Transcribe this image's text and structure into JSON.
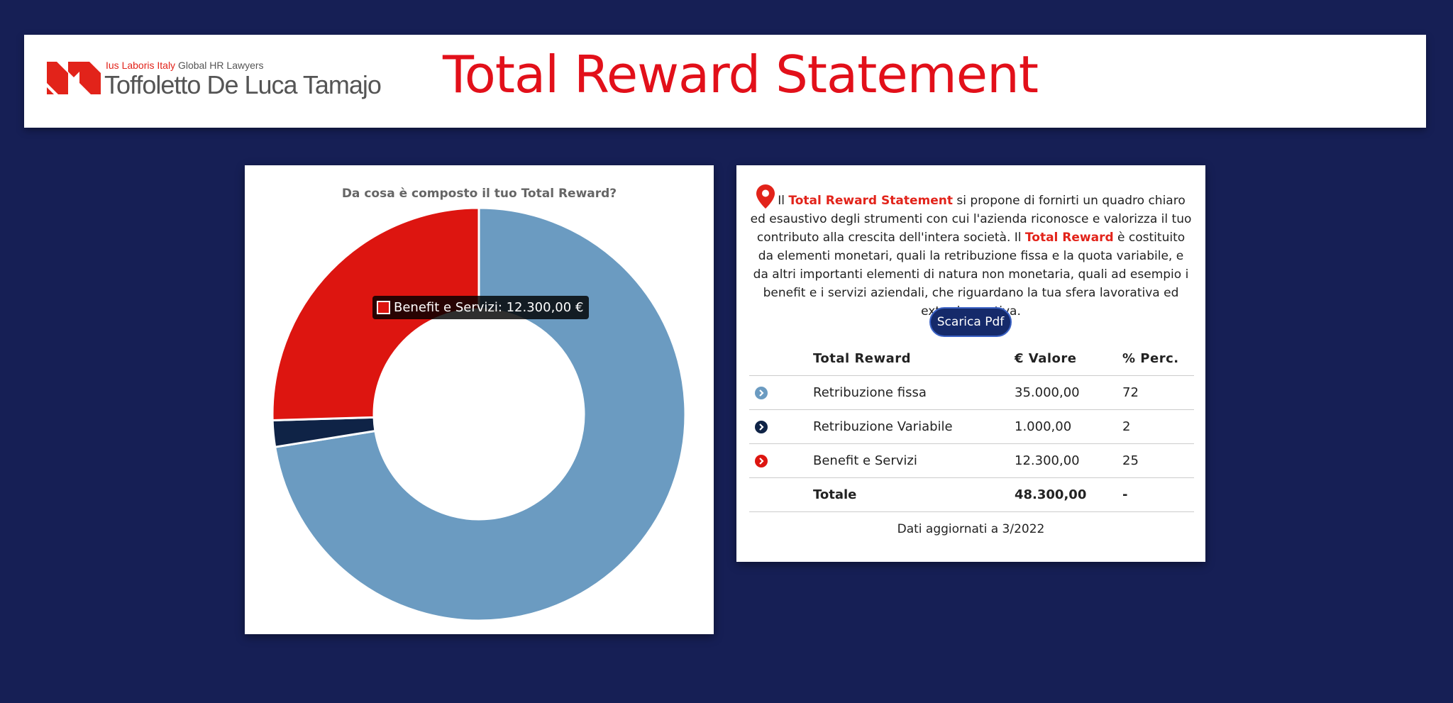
{
  "header": {
    "logo_tag_red": "Ius Laboris Italy",
    "logo_tag_rest": "Global HR Lawyers",
    "logo_name": "Toffoletto De Luca Tamajo",
    "title": "Total Reward Statement"
  },
  "chart_data": {
    "type": "donut",
    "title": "Da cosa è composto il tuo Total Reward?",
    "slices": [
      {
        "name": "Retribuzione fissa",
        "value": 35000,
        "color": "#6b9bc1"
      },
      {
        "name": "Retribuzione Variabile",
        "value": 1000,
        "color": "#0f2346"
      },
      {
        "name": "Benefit e Servizi",
        "value": 12300,
        "color": "#dd1510"
      }
    ],
    "tooltip": "Benefit e Servizi: 12.300,00 €"
  },
  "intro": {
    "p1": "Il ",
    "hl1": "Total Reward Statement",
    "p2": " si propone di fornirti un quadro chiaro ed esaustivo degli strumenti con cui l'azienda riconosce e valorizza il tuo contributo alla crescita dell'intera società. Il ",
    "hl2": "Total Reward",
    "p3": " è costituito da elementi monetari, quali la retribuzione fissa e la quota variabile, e da altri importanti elementi di natura non monetaria, quali ad esempio i benefit e i servizi aziendali, che riguardano la tua sfera lavorativa ed extra-lavorativa."
  },
  "button": {
    "label": "Scarica Pdf"
  },
  "table": {
    "headers": [
      "Total Reward",
      "€ Valore",
      "% Perc."
    ],
    "rows": [
      {
        "label": "Retribuzione fissa",
        "value": "35.000,00",
        "perc": "72",
        "color": "#6b9bc1"
      },
      {
        "label": "Retribuzione Variabile",
        "value": "1.000,00",
        "perc": "2",
        "color": "#0f2346"
      },
      {
        "label": "Benefit e Servizi",
        "value": "12.300,00",
        "perc": "25",
        "color": "#dd1510"
      }
    ],
    "total": {
      "label": "Totale",
      "value": "48.300,00",
      "perc": "-"
    }
  },
  "footer": {
    "updated": "Dati aggiornati a 3/2022"
  }
}
